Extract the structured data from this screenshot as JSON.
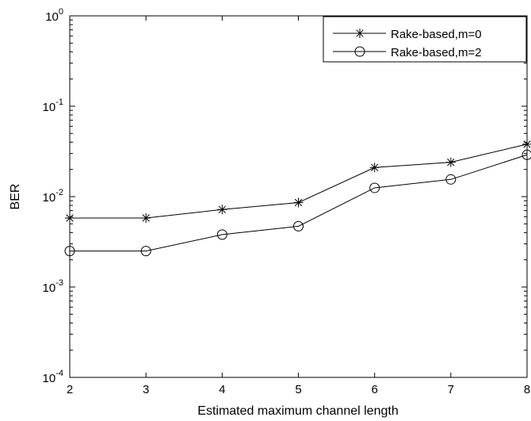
{
  "chart_data": {
    "type": "line",
    "title": "",
    "xlabel": "Estimated maximum channel length",
    "ylabel": "BER",
    "yscale": "log",
    "x": [
      2,
      3,
      4,
      5,
      6,
      7,
      8
    ],
    "xlim": [
      2,
      8
    ],
    "ylim": [
      0.0001,
      1
    ],
    "xticks": [
      "2",
      "3",
      "4",
      "5",
      "6",
      "7",
      "8"
    ],
    "yticks": [
      {
        "base": "10",
        "exp": "-4"
      },
      {
        "base": "10",
        "exp": "-3"
      },
      {
        "base": "10",
        "exp": "-2"
      },
      {
        "base": "10",
        "exp": "-1"
      },
      {
        "base": "10",
        "exp": "0"
      }
    ],
    "grid": false,
    "legend_position": "top-right",
    "series": [
      {
        "name": "Rake-based,m=0",
        "marker": "asterisk",
        "values": [
          0.0058,
          0.0058,
          0.0072,
          0.0086,
          0.021,
          0.024,
          0.038
        ]
      },
      {
        "name": "Rake-based,m=2",
        "marker": "circle",
        "values": [
          0.0025,
          0.0025,
          0.0038,
          0.0047,
          0.0125,
          0.0155,
          0.029
        ]
      }
    ],
    "colors": {
      "line": "#000000",
      "background": "#ffffff"
    }
  }
}
